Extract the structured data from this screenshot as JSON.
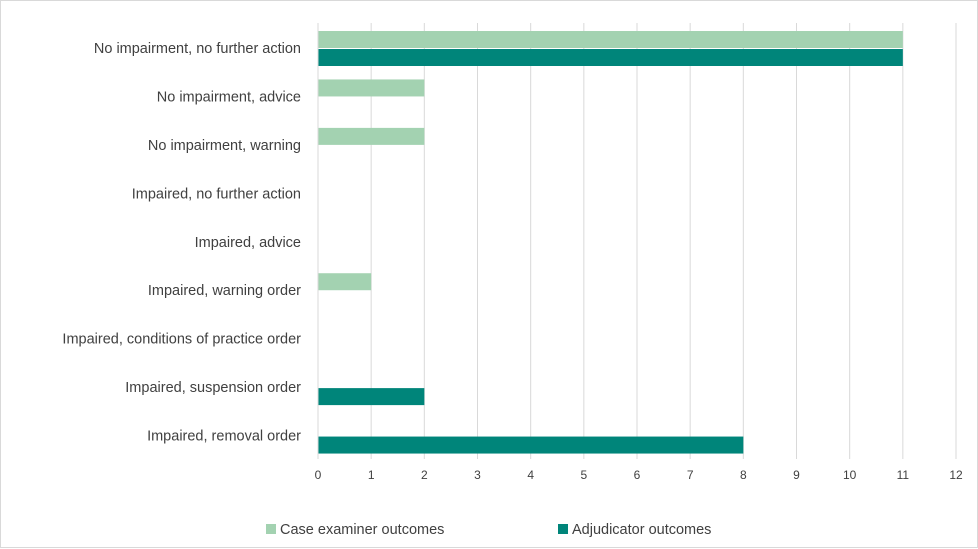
{
  "chart_data": {
    "type": "bar",
    "orientation": "horizontal",
    "title": "",
    "xlabel": "",
    "ylabel": "",
    "categories": [
      "No impairment, no further action",
      "No impairment, advice",
      "No impairment, warning",
      "Impaired, no further action",
      "Impaired, advice",
      "Impaired, warning order",
      "Impaired, conditions of practice order",
      "Impaired, suspension order",
      "Impaired, removal order"
    ],
    "series": [
      {
        "name": "Case examiner outcomes",
        "color": "#a3d2b1",
        "values": [
          11,
          2,
          2,
          0,
          0,
          1,
          0,
          0,
          0
        ]
      },
      {
        "name": "Adjudicator outcomes",
        "color": "#00857a",
        "values": [
          11,
          0,
          0,
          0,
          0,
          0,
          0,
          2,
          8
        ]
      }
    ],
    "xlim": [
      0,
      12
    ],
    "xticks": [
      "0",
      "1",
      "2",
      "3",
      "4",
      "5",
      "6",
      "7",
      "8",
      "9",
      "10",
      "11",
      "12"
    ],
    "grid": "vertical",
    "legend_position": "bottom"
  }
}
